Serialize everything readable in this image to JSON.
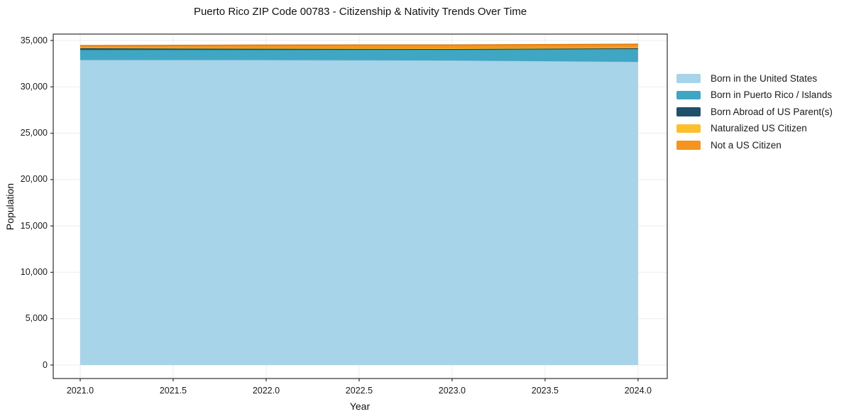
{
  "chart_data": {
    "type": "area",
    "stacked": true,
    "title": "Puerto Rico ZIP Code 00783 - Citizenship & Nativity Trends Over Time",
    "xlabel": "Year",
    "ylabel": "Population",
    "x": [
      2021,
      2022,
      2023,
      2024
    ],
    "series": [
      {
        "name": "Born in the United States",
        "color": "#a7d4e9",
        "edge_color": "#8fc7e1",
        "values": [
          32900,
          32900,
          32850,
          32700
        ]
      },
      {
        "name": "Born in Puerto Rico / Islands",
        "color": "#3fa6c3",
        "edge_color": "#2d92b2",
        "values": [
          1100,
          1100,
          1160,
          1400
        ]
      },
      {
        "name": "Born Abroad of US Parent(s)",
        "color": "#20506b",
        "edge_color": "#173f57",
        "values": [
          160,
          110,
          70,
          60
        ]
      },
      {
        "name": "Naturalized US Citizen",
        "color": "#fcc02e",
        "edge_color": "#e8a51c",
        "values": [
          90,
          110,
          110,
          110
        ]
      },
      {
        "name": "Not a US Citizen",
        "color": "#f5941f",
        "edge_color": "#dd7d0f",
        "values": [
          200,
          290,
          330,
          330
        ]
      }
    ],
    "xticks": [
      2021.0,
      2021.5,
      2022.0,
      2022.5,
      2023.0,
      2023.5,
      2024.0
    ],
    "xtick_labels": [
      "2021.0",
      "2021.5",
      "2022.0",
      "2022.5",
      "2023.0",
      "2023.5",
      "2024.0"
    ],
    "yticks": [
      0,
      5000,
      10000,
      15000,
      20000,
      25000,
      30000,
      35000
    ],
    "ytick_labels": [
      "0",
      "5,000",
      "10,000",
      "15,000",
      "20,000",
      "25,000",
      "30,000",
      "35,000"
    ],
    "xlim": [
      2020.855,
      2024.157
    ],
    "ylim": [
      -1455,
      35690
    ],
    "grid": true,
    "legend_position": "right-outside"
  },
  "colors": {
    "spine": "#2e2e2e",
    "grid": "#ededed",
    "tick": "#2e2e2e",
    "tick_label": "#1a1a1a",
    "background": "#ffffff"
  }
}
